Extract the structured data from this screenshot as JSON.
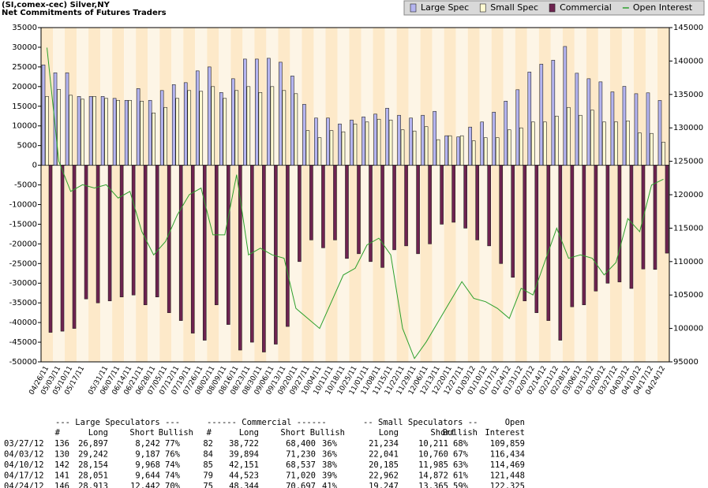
{
  "chart_data": {
    "type": "bar",
    "title": "(SI,comex-cec) Silver,NY",
    "subtitle": "Net Commitments of Futures Traders",
    "categories": [
      "04/26/11",
      "05/03/11",
      "05/10/11",
      "05/17/11",
      null,
      "05/31/11",
      "06/07/11",
      "06/14/11",
      "06/21/11",
      "06/28/11",
      "07/05/11",
      "07/12/11",
      "07/19/11",
      "07/26/11",
      "08/02/11",
      "08/09/11",
      "08/16/11",
      "08/23/11",
      "08/30/11",
      "09/06/11",
      "09/13/11",
      "09/20/11",
      "09/27/11",
      "10/04/11",
      "10/11/11",
      "10/18/11",
      "10/25/11",
      "11/01/11",
      "11/08/11",
      "11/15/11",
      "11/22/11",
      "11/29/11",
      "12/06/11",
      "12/13/11",
      "12/20/11",
      "12/27/11",
      "01/03/12",
      "01/10/12",
      "01/17/12",
      "01/24/12",
      "01/31/12",
      "02/07/12",
      "02/14/12",
      "02/21/12",
      "02/28/12",
      "03/06/12",
      "03/13/12",
      "03/20/12",
      "03/27/12",
      "04/03/12",
      "04/10/12",
      "04/17/12",
      "04/24/12"
    ],
    "series": [
      {
        "name": "Large Spec",
        "color": "#b4b4f0",
        "values": [
          25500,
          23500,
          23500,
          17500,
          17500,
          17500,
          17000,
          16500,
          19500,
          16500,
          19000,
          20500,
          21000,
          24000,
          25000,
          18500,
          22000,
          27000,
          27000,
          27200,
          26200,
          22700,
          15500,
          12000,
          12000,
          10500,
          11500,
          12300,
          13000,
          14500,
          12700,
          12000,
          12700,
          13700,
          7500,
          7200,
          9700,
          11000,
          13500,
          16300,
          19200,
          23700,
          25700,
          26700,
          30200,
          23400,
          22000,
          21200,
          18655,
          20055,
          18186,
          18407,
          16471
        ]
      },
      {
        "name": "Small Spec",
        "color": "#fffad2",
        "values": [
          17500,
          19300,
          17800,
          16800,
          17500,
          17000,
          16500,
          16500,
          16300,
          13300,
          14700,
          17000,
          19000,
          18800,
          20000,
          17000,
          19000,
          20000,
          18500,
          20000,
          19000,
          18200,
          8800,
          7000,
          8800,
          8500,
          10500,
          11000,
          11700,
          11500,
          9000,
          8700,
          9800,
          6500,
          7500,
          7500,
          6200,
          7000,
          7000,
          9000,
          9500,
          11000,
          11000,
          12500,
          14700,
          12700,
          14000,
          11000,
          11023,
          11281,
          8200,
          8090,
          5882
        ]
      },
      {
        "name": "Commercial",
        "color": "#6e2350",
        "values": [
          -42500,
          -42200,
          -41500,
          -34000,
          -35000,
          -34500,
          -33500,
          -33000,
          -35500,
          -33500,
          -37500,
          -39500,
          -42700,
          -44500,
          -35500,
          -40500,
          -47000,
          -45000,
          -47500,
          -45500,
          -41000,
          -24500,
          -19000,
          -21000,
          -19000,
          -23700,
          -22500,
          -24500,
          -26000,
          -21500,
          -20500,
          -22500,
          -20000,
          -15000,
          -14500,
          -16000,
          -19000,
          -20500,
          -25000,
          -28500,
          -34500,
          -37500,
          -39500,
          -44500,
          -36000,
          -35500,
          -32000,
          -30000,
          -29678,
          -31336,
          -26386,
          -26497,
          -22353
        ]
      },
      {
        "name": "Open Interest",
        "color": "#2ca02c",
        "kind": "line",
        "axis": "y2",
        "values": [
          142000,
          125000,
          120500,
          121500,
          121000,
          121500,
          119500,
          120500,
          114500,
          111000,
          113000,
          117000,
          120000,
          121000,
          114000,
          114000,
          123000,
          111000,
          112000,
          111000,
          110500,
          103000,
          101500,
          100000,
          104000,
          108000,
          109000,
          112500,
          113500,
          111000,
          100000,
          95500,
          98000,
          101000,
          104000,
          107000,
          104500,
          104000,
          103000,
          101500,
          106000,
          105000,
          110000,
          115000,
          110500,
          111000,
          110500,
          108000,
          109859,
          116434,
          114469,
          121448,
          122325
        ]
      }
    ],
    "ylim": [
      -50000,
      35000
    ],
    "yticks": [
      -50000,
      -45000,
      -40000,
      -35000,
      -30000,
      -25000,
      -20000,
      -15000,
      -10000,
      -5000,
      0,
      5000,
      10000,
      15000,
      20000,
      25000,
      30000,
      35000
    ],
    "y2lim": [
      95000,
      145000
    ],
    "y2ticks": [
      95000,
      100000,
      105000,
      110000,
      115000,
      120000,
      125000,
      130000,
      135000,
      140000,
      145000
    ],
    "grid": false,
    "legend": "top-right"
  },
  "table": {
    "group_headers": [
      "--- Large Speculators ---",
      "------ Commercial ------",
      "-- Small Speculators --",
      "Open"
    ],
    "columns": [
      "#",
      "Long",
      "Short",
      "Bullish",
      "#",
      "Long",
      "Short",
      "Bullish",
      "Long",
      "Short",
      "Bullish",
      "Interest"
    ],
    "rows": [
      [
        "03/27/12",
        "136",
        "26,897",
        "8,242",
        "77%",
        "82",
        "38,722",
        "68,400",
        "36%",
        "21,234",
        "10,211",
        "68%",
        "109,859"
      ],
      [
        "04/03/12",
        "130",
        "29,242",
        "9,187",
        "76%",
        "84",
        "39,894",
        "71,230",
        "36%",
        "22,041",
        "10,760",
        "67%",
        "116,434"
      ],
      [
        "04/10/12",
        "142",
        "28,154",
        "9,968",
        "74%",
        "85",
        "42,151",
        "68,537",
        "38%",
        "20,185",
        "11,985",
        "63%",
        "114,469"
      ],
      [
        "04/17/12",
        "141",
        "28,051",
        "9,644",
        "74%",
        "79",
        "44,523",
        "71,020",
        "39%",
        "22,962",
        "14,872",
        "61%",
        "121,448"
      ],
      [
        "04/24/12",
        "146",
        "28,913",
        "12,442",
        "70%",
        "75",
        "48,344",
        "70,697",
        "41%",
        "19,247",
        "13,365",
        "59%",
        "122,325"
      ]
    ]
  }
}
